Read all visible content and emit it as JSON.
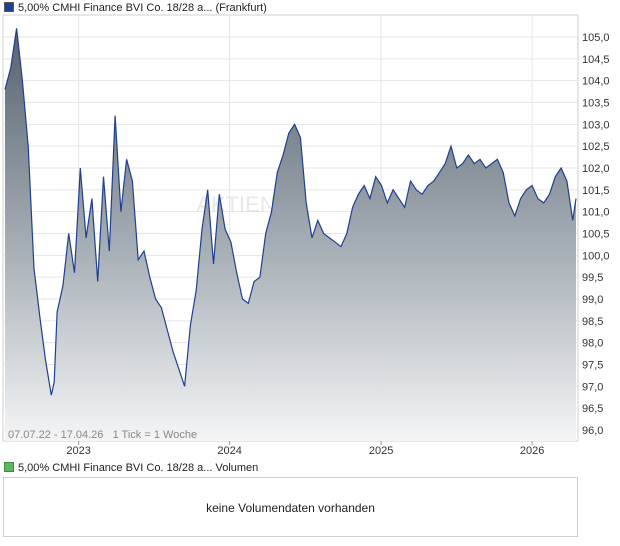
{
  "legend": {
    "price_label": "5,00% CMHI Finance BVI Co. 18/28 a...  (Frankfurt)",
    "price_color": "#1f3f8f",
    "volume_label": "5,00% CMHI Finance BVI Co. 18/28 a...  Volumen",
    "volume_color": "#5cb85c"
  },
  "range_note": "07.07.22 - 17.04.26   1 Tick = 1 Woche",
  "watermark": "AKTIEN",
  "volume": {
    "message": "keine Volumendaten vorhanden"
  },
  "chart_data": {
    "type": "area",
    "series": [
      {
        "name": "5,00% CMHI Finance BVI Co. 18/28 a...  (Frankfurt)",
        "color": "#1f3f8f",
        "x": [
          "2022-07-07",
          "2022-07-21",
          "2022-08-04",
          "2022-08-18",
          "2022-09-01",
          "2022-09-15",
          "2022-09-29",
          "2022-10-13",
          "2022-10-27",
          "2022-11-03",
          "2022-11-10",
          "2022-11-24",
          "2022-12-08",
          "2022-12-22",
          "2023-01-05",
          "2023-01-19",
          "2023-02-02",
          "2023-02-16",
          "2023-03-02",
          "2023-03-16",
          "2023-03-30",
          "2023-04-13",
          "2023-04-27",
          "2023-05-11",
          "2023-05-25",
          "2023-06-08",
          "2023-06-22",
          "2023-07-06",
          "2023-07-20",
          "2023-08-03",
          "2023-08-17",
          "2023-08-31",
          "2023-09-14",
          "2023-09-28",
          "2023-10-12",
          "2023-10-26",
          "2023-11-09",
          "2023-11-23",
          "2023-12-07",
          "2023-12-21",
          "2024-01-04",
          "2024-01-18",
          "2024-02-01",
          "2024-02-15",
          "2024-02-29",
          "2024-03-14",
          "2024-03-28",
          "2024-04-11",
          "2024-04-25",
          "2024-05-09",
          "2024-05-23",
          "2024-06-06",
          "2024-06-20",
          "2024-07-04",
          "2024-07-18",
          "2024-08-01",
          "2024-08-15",
          "2024-08-29",
          "2024-09-12",
          "2024-09-26",
          "2024-10-10",
          "2024-10-24",
          "2024-11-07",
          "2024-11-21",
          "2024-12-05",
          "2024-12-19",
          "2025-01-02",
          "2025-01-16",
          "2025-01-30",
          "2025-02-13",
          "2025-02-27",
          "2025-03-13",
          "2025-03-27",
          "2025-04-10",
          "2025-04-24",
          "2025-05-08",
          "2025-05-22",
          "2025-06-05",
          "2025-06-19",
          "2025-07-03",
          "2025-07-17",
          "2025-07-31",
          "2025-08-14",
          "2025-08-28",
          "2025-09-11",
          "2025-09-25",
          "2025-10-09",
          "2025-10-23",
          "2025-11-06",
          "2025-11-20",
          "2025-12-04",
          "2025-12-18",
          "2026-01-01",
          "2026-01-15",
          "2026-01-29",
          "2026-02-12",
          "2026-02-26",
          "2026-03-12",
          "2026-03-26",
          "2026-04-09",
          "2026-04-17"
        ],
        "values": [
          103.8,
          104.3,
          105.2,
          104.0,
          102.5,
          99.7,
          98.6,
          97.6,
          96.8,
          97.1,
          98.7,
          99.3,
          100.5,
          99.6,
          102.0,
          100.4,
          101.3,
          99.4,
          101.8,
          100.1,
          103.2,
          101.0,
          102.2,
          101.7,
          99.9,
          100.1,
          99.5,
          99.0,
          98.8,
          98.3,
          97.8,
          97.4,
          97.0,
          98.4,
          99.2,
          100.6,
          101.5,
          99.8,
          101.4,
          100.6,
          100.3,
          99.6,
          99.0,
          98.9,
          99.4,
          99.5,
          100.5,
          101.0,
          101.9,
          102.3,
          102.8,
          103.0,
          102.7,
          101.2,
          100.4,
          100.8,
          100.5,
          100.4,
          100.3,
          100.2,
          100.5,
          101.1,
          101.4,
          101.6,
          101.3,
          101.8,
          101.6,
          101.2,
          101.5,
          101.3,
          101.1,
          101.7,
          101.5,
          101.4,
          101.6,
          101.7,
          101.9,
          102.1,
          102.5,
          102.0,
          102.1,
          102.3,
          102.1,
          102.2,
          102.0,
          102.1,
          102.2,
          101.9,
          101.2,
          100.9,
          101.3,
          101.5,
          101.6,
          101.3,
          101.2,
          101.4,
          101.8,
          102.0,
          101.7,
          100.8,
          101.3
        ]
      }
    ],
    "x_ticks": [
      "2023",
      "2024",
      "2025",
      "2026"
    ],
    "y_ticks": [
      "96,0",
      "96,5",
      "97,0",
      "97,5",
      "98,0",
      "98,5",
      "99,0",
      "99,5",
      "100,0",
      "100,5",
      "101,0",
      "101,5",
      "102,0",
      "102,5",
      "103,0",
      "103,5",
      "104,0",
      "104,5",
      "105,0"
    ],
    "ylim": [
      96.0,
      105.0
    ],
    "y_axis_position": "right",
    "grid": true
  }
}
